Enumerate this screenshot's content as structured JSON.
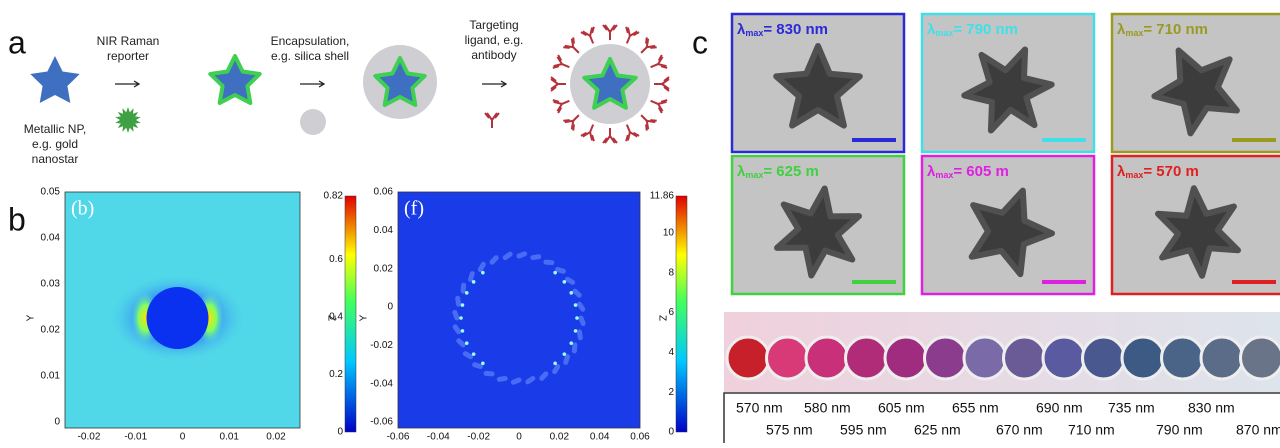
{
  "panel_a": {
    "label": "a",
    "steps": [
      {
        "lines": [
          "Metallic NP,",
          "e.g. gold",
          "nanostar"
        ]
      },
      {
        "lines": [
          "NIR Raman",
          "reporter"
        ]
      },
      {
        "lines": [
          "Encapsulation,",
          "e.g. silica shell"
        ]
      },
      {
        "lines": [
          "Targeting",
          "ligand, e.g.",
          "antibody"
        ]
      }
    ]
  },
  "panel_b": {
    "label": "b",
    "plots": [
      {
        "tag": "(b)",
        "y_axis": "Y",
        "z_axis": "Z",
        "yticks": [
          "0.05",
          "0.04",
          "0.03",
          "0.02",
          "0.01",
          "0"
        ],
        "xticks": [
          "-0.02",
          "-0.01",
          "0",
          "0.01",
          "0.02"
        ],
        "colorbar_ticks": [
          "0.82",
          "0.6",
          "0.4",
          "0.2",
          "0"
        ]
      },
      {
        "tag": "(f)",
        "y_axis": "Y",
        "z_axis": "Z",
        "yticks": [
          "0.06",
          "0.04",
          "0.02",
          "0",
          "-0.02",
          "-0.04",
          "-0.06"
        ],
        "xticks": [
          "-0.06",
          "-0.04",
          "-0.02",
          "0",
          "0.02",
          "0.04",
          "0.06"
        ],
        "colorbar_ticks": [
          "11.86",
          "10",
          "8",
          "6",
          "4",
          "2",
          "0"
        ]
      }
    ]
  },
  "panel_c": {
    "label": "c",
    "symbol": "λ",
    "subscript": "max",
    "images": [
      {
        "label": "= 830 nm"
      },
      {
        "label": "= 790 nm"
      },
      {
        "label": "= 710 nm"
      },
      {
        "label": "= 625 m"
      },
      {
        "label": "= 605 m"
      },
      {
        "label": "= 570 m"
      }
    ],
    "wavelengths": {
      "row1": [
        "570 nm",
        "580 nm",
        "605 nm",
        "655 nm",
        "690 nm",
        "735 nm",
        "830 nm"
      ],
      "row2": [
        "575 nm",
        "595 nm",
        "625 nm",
        "670 nm",
        "710 nm",
        "790 nm",
        "870 nm"
      ]
    }
  }
}
